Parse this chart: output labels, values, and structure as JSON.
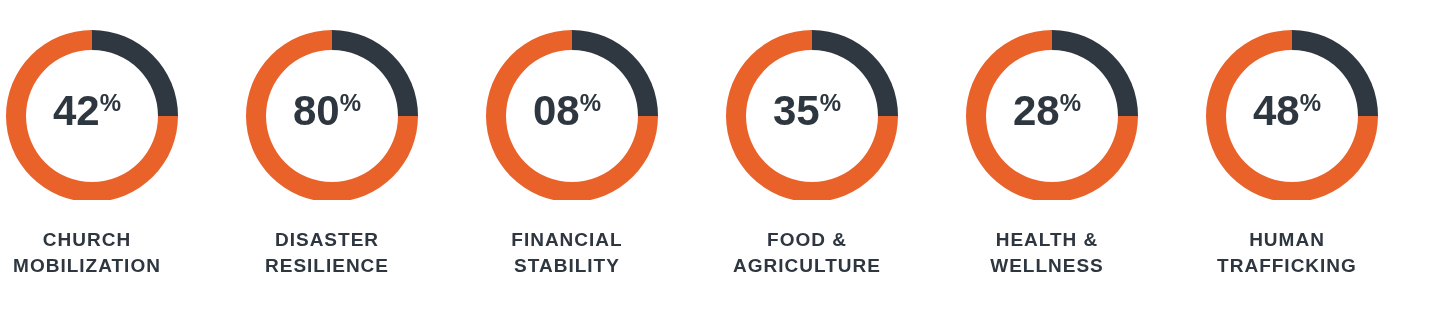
{
  "chart_data": [
    {
      "type": "donut",
      "title": "CHURCH MOBILIZATION",
      "categories": [
        null,
        null
      ],
      "values": [
        25,
        75
      ],
      "colors": [
        "#2f3741",
        "#e8622a"
      ],
      "annotations": [
        "42$^{%}$"
      ]
    },
    {
      "type": "donut",
      "title": "DISASTER RESILIENCE",
      "categories": [
        null,
        null
      ],
      "values": [
        25,
        75
      ],
      "colors": [
        "#2f3741",
        "#e8622a"
      ],
      "annotations": [
        "80$^{%}$"
      ]
    },
    {
      "type": "donut",
      "title": "FINANCIAL STABILITY",
      "categories": [
        null,
        null
      ],
      "values": [
        25,
        75
      ],
      "colors": [
        "#2f3741",
        "#e8622a"
      ],
      "annotations": [
        "08$^{%}$"
      ]
    },
    {
      "type": "donut",
      "title": "FOOD & AGRICULTURE",
      "categories": [
        null,
        null
      ],
      "values": [
        25,
        75
      ],
      "colors": [
        "#2f3741",
        "#e8622a"
      ],
      "annotations": [
        "35$^{%}$"
      ]
    },
    {
      "type": "donut",
      "title": "HEALTH & WELLNESS",
      "categories": [
        null,
        null
      ],
      "values": [
        25,
        75
      ],
      "colors": [
        "#2f3741",
        "#e8622a"
      ],
      "annotations": [
        "28$^{%}$"
      ]
    },
    {
      "type": "donut",
      "title": "HUMAN TRAFFICKING",
      "categories": [
        null,
        null
      ],
      "values": [
        25,
        75
      ],
      "colors": [
        "#2f3741",
        "#e8622a"
      ],
      "annotations": [
        "48$^{%}$"
      ]
    }
  ]
}
